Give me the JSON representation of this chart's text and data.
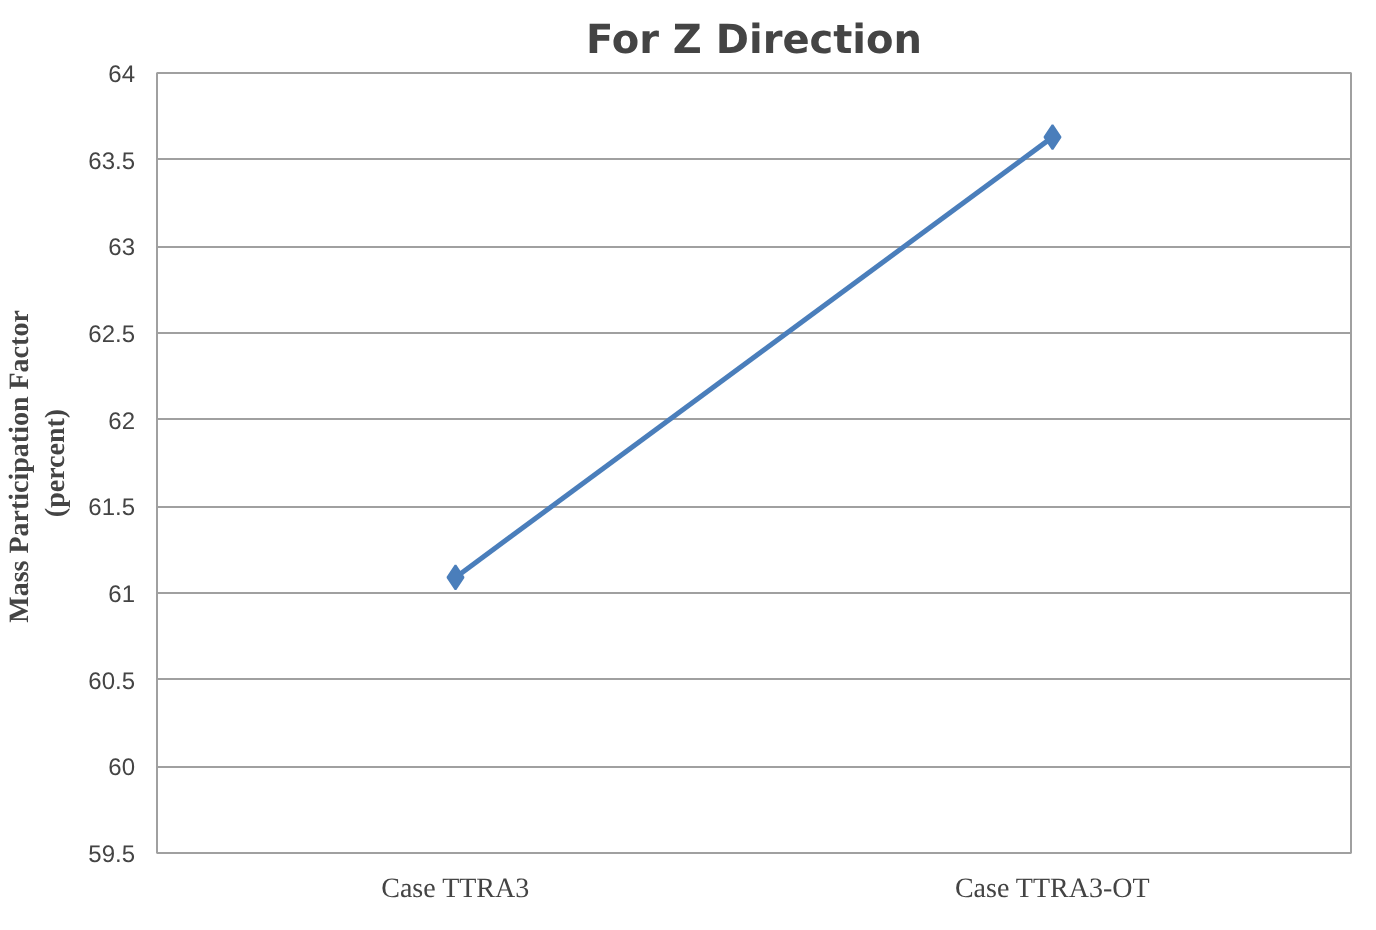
{
  "chart_data": {
    "type": "line",
    "title": "For Z Direction",
    "ylabel": "Mass Participation  Factor\n(percent)",
    "categories": [
      "Case TTRA3",
      "Case TTRA3-OT"
    ],
    "series": [
      {
        "color": "#4a7ebb",
        "values": [
          61.09,
          63.63
        ]
      }
    ],
    "ylim": [
      59.5,
      64
    ],
    "yticks": [
      59.5,
      60,
      60.5,
      61,
      61.5,
      62,
      62.5,
      63,
      63.5,
      64
    ],
    "grid": "y",
    "marker": "diamond",
    "line_style": "solid"
  }
}
